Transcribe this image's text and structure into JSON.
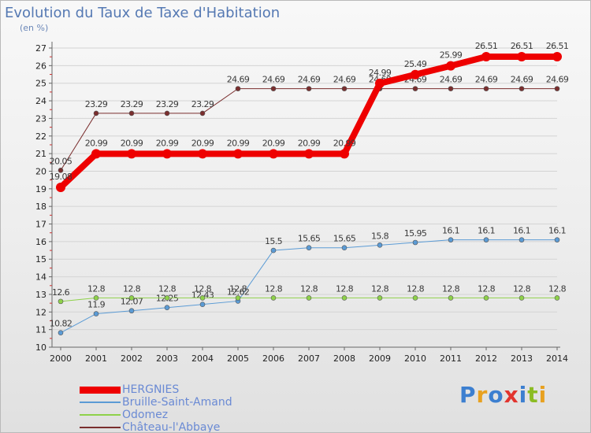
{
  "title": "Evolution du Taux de Taxe d'Habitation",
  "subtitle": "(en %)",
  "brand": {
    "text": "Proxiti",
    "colors": [
      "#3c7fd0",
      "#e8a120",
      "#3c7fd0",
      "#e2342e",
      "#3c7fd0",
      "#8bbc24",
      "#e8a120"
    ]
  },
  "colors": {
    "axis": "#666666",
    "grid": "#d4d4d4",
    "tick_mark": "#cc3333",
    "legend_text": "#6a8ad4"
  },
  "chart_data": {
    "type": "line",
    "title": "Evolution du Taux de Taxe d'Habitation",
    "ylabel": "(en %)",
    "xlabel": "",
    "x": [
      2000,
      2001,
      2002,
      2003,
      2004,
      2005,
      2006,
      2007,
      2008,
      2009,
      2010,
      2011,
      2012,
      2013,
      2014
    ],
    "ylim": [
      10,
      27
    ],
    "yticks": [
      10,
      11,
      12,
      13,
      14,
      15,
      16,
      17,
      18,
      19,
      20,
      21,
      22,
      23,
      24,
      25,
      26,
      27
    ],
    "grid": "horizontal",
    "legend_position": "bottom-left",
    "series": [
      {
        "name": "HERGNIES",
        "color": "#ee0000",
        "width": 8,
        "marker": 6,
        "values": [
          19.08,
          20.99,
          20.99,
          20.99,
          20.99,
          20.99,
          20.99,
          20.99,
          20.99,
          24.99,
          25.49,
          25.99,
          26.51,
          26.51,
          26.51
        ],
        "labels": [
          "19.08",
          "20.99",
          "20.99",
          "20.99",
          "20.99",
          "20.99",
          "20.99",
          "20.99",
          "20.99",
          "24.99",
          "25.49",
          "25.99",
          "26.51",
          "26.51",
          "26.51"
        ]
      },
      {
        "name": "Bruille-Saint-Amand",
        "color": "#5b9bd5",
        "width": 1,
        "marker": 3,
        "values": [
          10.82,
          11.9,
          12.07,
          12.25,
          12.43,
          12.62,
          15.5,
          15.65,
          15.65,
          15.8,
          15.95,
          16.1,
          16.1,
          16.1,
          16.1
        ],
        "labels": [
          "10.82",
          "11.9",
          "12.07",
          "12.25",
          "12.43",
          "12.62",
          "15.5",
          "15.65",
          "15.65",
          "15.8",
          "15.95",
          "16.1",
          "16.1",
          "16.1",
          "16.1"
        ]
      },
      {
        "name": "Odomez",
        "color": "#8ed14a",
        "width": 1,
        "marker": 3,
        "values": [
          12.6,
          12.8,
          12.8,
          12.8,
          12.8,
          12.8,
          12.8,
          12.8,
          12.8,
          12.8,
          12.8,
          12.8,
          12.8,
          12.8,
          12.8
        ],
        "labels": [
          "12.6",
          "12.8",
          "12.8",
          "12.8",
          "12.8",
          "12.8",
          "12.8",
          "12.8",
          "12.8",
          "12.8",
          "12.8",
          "12.8",
          "12.8",
          "12.8",
          "12.8"
        ]
      },
      {
        "name": "Château-l'Abbaye",
        "color": "#7a2e2e",
        "width": 1,
        "marker": 3,
        "values": [
          20.05,
          23.29,
          23.29,
          23.29,
          23.29,
          24.69,
          24.69,
          24.69,
          24.69,
          24.69,
          24.69,
          24.69,
          24.69,
          24.69,
          24.69
        ],
        "labels": [
          "20.05",
          "23.29",
          "23.29",
          "23.29",
          "23.29",
          "24.69",
          "24.69",
          "24.69",
          "24.69",
          "24.69",
          "24.69",
          "24.69",
          "24.69",
          "24.69",
          "24.69"
        ]
      }
    ]
  }
}
